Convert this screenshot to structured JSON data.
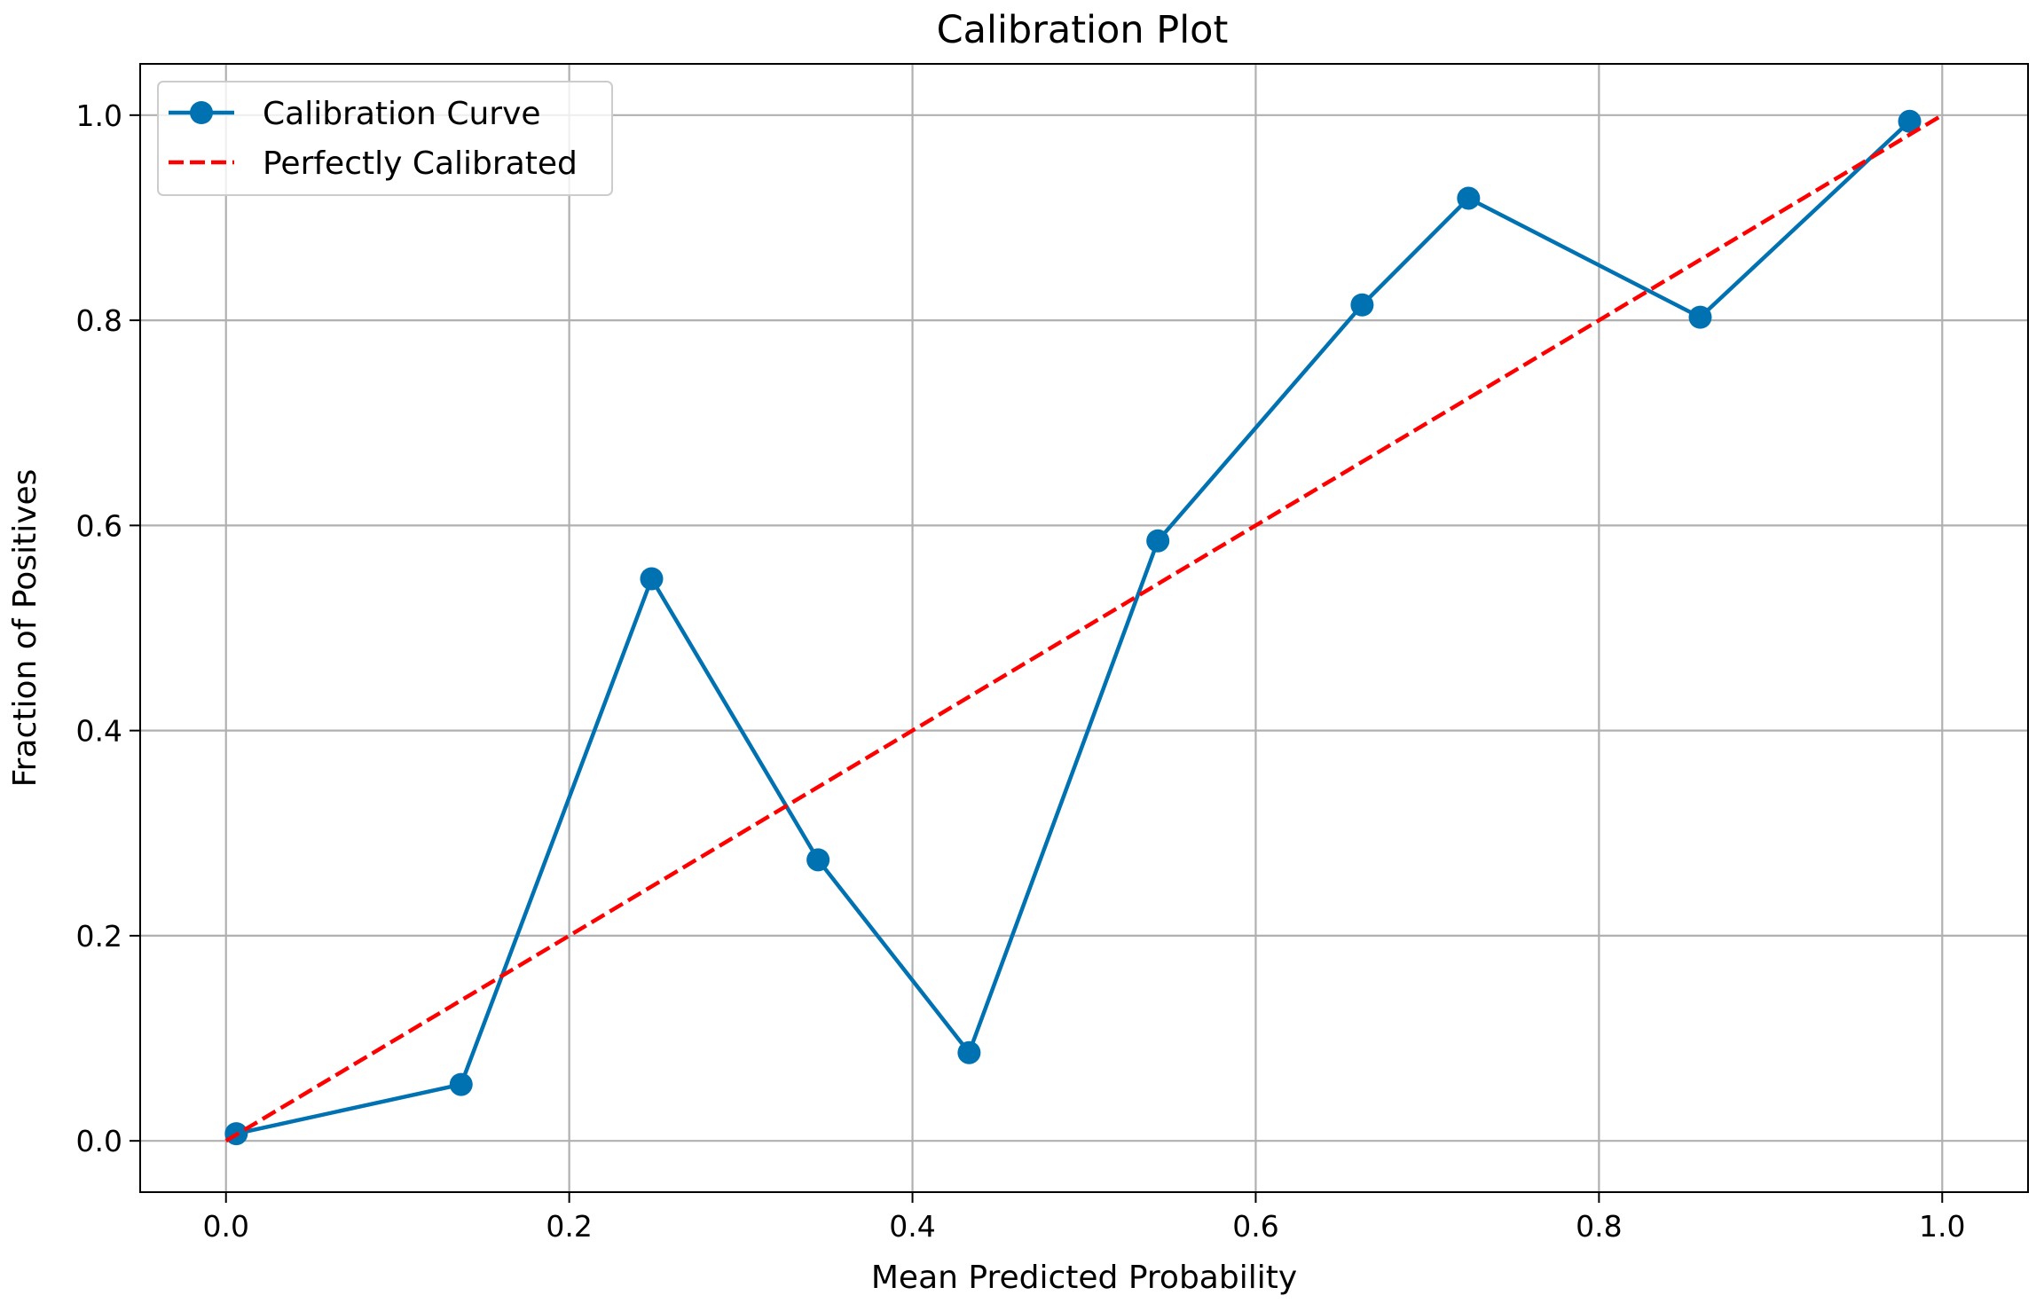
{
  "chart_data": {
    "type": "line",
    "title": "Calibration Plot",
    "xlabel": "Mean Predicted Probability",
    "ylabel": "Fraction of Positives",
    "xlim": [
      -0.05,
      1.05
    ],
    "ylim": [
      -0.05,
      1.05
    ],
    "xticks": [
      0.0,
      0.2,
      0.4,
      0.6,
      0.8,
      1.0
    ],
    "yticks": [
      0.0,
      0.2,
      0.4,
      0.6,
      0.8,
      1.0
    ],
    "xtick_labels": [
      "0.0",
      "0.2",
      "0.4",
      "0.6",
      "0.8",
      "1.0"
    ],
    "ytick_labels": [
      "0.0",
      "0.2",
      "0.4",
      "0.6",
      "0.8",
      "1.0"
    ],
    "grid": true,
    "legend_position": "top-left",
    "series": [
      {
        "name": "Calibration Curve",
        "style": "solid-with-markers",
        "color": "#0072b2",
        "x": [
          0.006,
          0.137,
          0.248,
          0.345,
          0.433,
          0.543,
          0.662,
          0.724,
          0.859,
          0.981
        ],
        "y": [
          0.007,
          0.055,
          0.548,
          0.274,
          0.086,
          0.585,
          0.815,
          0.919,
          0.803,
          0.994
        ]
      },
      {
        "name": "Perfectly Calibrated",
        "style": "dashed",
        "color": "#ff0000",
        "x": [
          0.0,
          1.0
        ],
        "y": [
          0.0,
          1.0
        ]
      }
    ]
  }
}
